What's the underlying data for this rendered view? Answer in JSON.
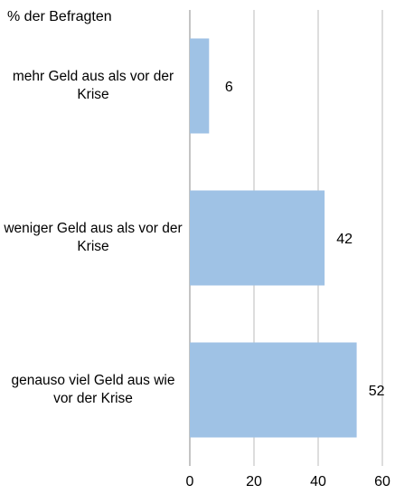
{
  "chart_data": {
    "type": "bar",
    "orientation": "horizontal",
    "y_axis_label": "% der Befragten",
    "categories": [
      "mehr Geld aus als vor der Krise",
      "weniger Geld aus als vor der Krise",
      "genauso viel Geld aus wie vor der Krise"
    ],
    "values": [
      6,
      42,
      52
    ],
    "color": "#9fc2e5",
    "xlim": [
      0,
      60
    ],
    "xticks": [
      0,
      20,
      40,
      60
    ],
    "grid": true
  }
}
